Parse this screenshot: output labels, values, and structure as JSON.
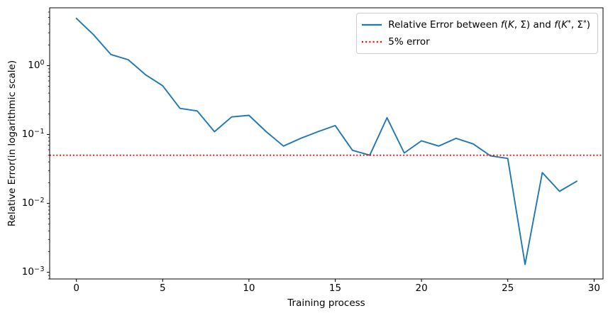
{
  "chart_data": {
    "type": "line",
    "title": "",
    "xlabel": "Training process",
    "ylabel": "Relative Error(in logarithmic scale)",
    "yscale": "log",
    "grid": false,
    "legend_position": "upper right",
    "xlim": [
      -1.55,
      30.52
    ],
    "ylim": [
      0.0008,
      6.91
    ],
    "x_ticks": [
      0,
      5,
      10,
      15,
      20,
      25,
      30
    ],
    "y_tick_base": "10",
    "y_tick_exponents": [
      0,
      -1,
      -2,
      -3
    ],
    "x": [
      0,
      1,
      2,
      3,
      4,
      5,
      6,
      7,
      8,
      9,
      10,
      11,
      12,
      13,
      14,
      15,
      16,
      17,
      18,
      19,
      20,
      21,
      22,
      23,
      24,
      25,
      26,
      27,
      28,
      29
    ],
    "series": [
      {
        "name": "Relative Error between f(K, Σ) and f(K*, Σ*)",
        "type": "line",
        "style": "solid",
        "color": "#1f77b4",
        "values": [
          4.85,
          2.8,
          1.45,
          1.22,
          0.74,
          0.51,
          0.24,
          0.22,
          0.11,
          0.18,
          0.19,
          0.11,
          0.068,
          0.088,
          0.11,
          0.135,
          0.059,
          0.05,
          0.175,
          0.054,
          0.081,
          0.068,
          0.088,
          0.073,
          0.049,
          0.045,
          0.0013,
          0.028,
          0.015,
          0.021
        ]
      },
      {
        "name": "5% error",
        "type": "hline",
        "style": "dotted",
        "color": "#ff0000",
        "value": 0.05
      }
    ]
  },
  "legend": {
    "item1_segments": [
      {
        "text": "Relative Error between ",
        "style": "n"
      },
      {
        "text": "f",
        "style": "i"
      },
      {
        "text": "(",
        "style": "n"
      },
      {
        "text": "K",
        "style": "i"
      },
      {
        "text": ", Σ) and ",
        "style": "n"
      },
      {
        "text": "f",
        "style": "i"
      },
      {
        "text": "(",
        "style": "n"
      },
      {
        "text": "K",
        "style": "i"
      },
      {
        "text": "*",
        "style": "sup"
      },
      {
        "text": ", Σ",
        "style": "n"
      },
      {
        "text": "*",
        "style": "sup"
      },
      {
        "text": ")",
        "style": "n"
      }
    ],
    "item2_label": "5% error"
  }
}
